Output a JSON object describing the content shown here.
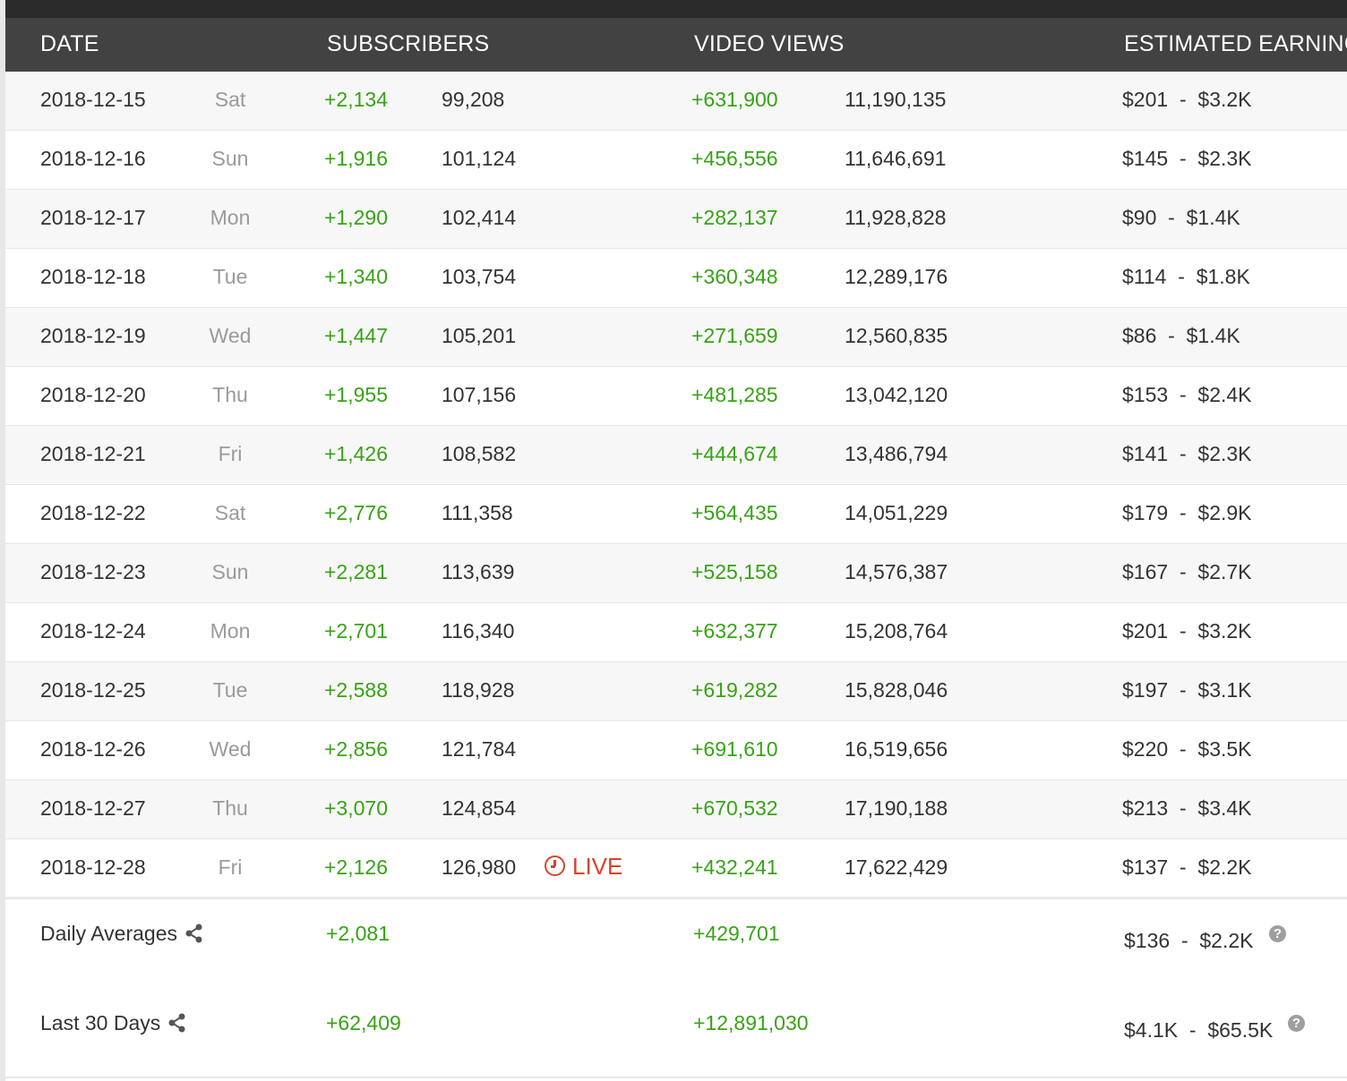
{
  "header": {
    "date": "DATE",
    "subscribers": "SUBSCRIBERS",
    "video_views": "VIDEO VIEWS",
    "estimated_earnings": "ESTIMATED EARNINGS"
  },
  "rows": [
    {
      "date": "2018-12-15",
      "day": "Sat",
      "sub_change": "+2,134",
      "sub_total": "99,208",
      "view_change": "+631,900",
      "view_total": "11,190,135",
      "earn_low": "$201",
      "earn_high": "$3.2K"
    },
    {
      "date": "2018-12-16",
      "day": "Sun",
      "sub_change": "+1,916",
      "sub_total": "101,124",
      "view_change": "+456,556",
      "view_total": "11,646,691",
      "earn_low": "$145",
      "earn_high": "$2.3K"
    },
    {
      "date": "2018-12-17",
      "day": "Mon",
      "sub_change": "+1,290",
      "sub_total": "102,414",
      "view_change": "+282,137",
      "view_total": "11,928,828",
      "earn_low": "$90",
      "earn_high": "$1.4K"
    },
    {
      "date": "2018-12-18",
      "day": "Tue",
      "sub_change": "+1,340",
      "sub_total": "103,754",
      "view_change": "+360,348",
      "view_total": "12,289,176",
      "earn_low": "$114",
      "earn_high": "$1.8K"
    },
    {
      "date": "2018-12-19",
      "day": "Wed",
      "sub_change": "+1,447",
      "sub_total": "105,201",
      "view_change": "+271,659",
      "view_total": "12,560,835",
      "earn_low": "$86",
      "earn_high": "$1.4K"
    },
    {
      "date": "2018-12-20",
      "day": "Thu",
      "sub_change": "+1,955",
      "sub_total": "107,156",
      "view_change": "+481,285",
      "view_total": "13,042,120",
      "earn_low": "$153",
      "earn_high": "$2.4K"
    },
    {
      "date": "2018-12-21",
      "day": "Fri",
      "sub_change": "+1,426",
      "sub_total": "108,582",
      "view_change": "+444,674",
      "view_total": "13,486,794",
      "earn_low": "$141",
      "earn_high": "$2.3K"
    },
    {
      "date": "2018-12-22",
      "day": "Sat",
      "sub_change": "+2,776",
      "sub_total": "111,358",
      "view_change": "+564,435",
      "view_total": "14,051,229",
      "earn_low": "$179",
      "earn_high": "$2.9K"
    },
    {
      "date": "2018-12-23",
      "day": "Sun",
      "sub_change": "+2,281",
      "sub_total": "113,639",
      "view_change": "+525,158",
      "view_total": "14,576,387",
      "earn_low": "$167",
      "earn_high": "$2.7K"
    },
    {
      "date": "2018-12-24",
      "day": "Mon",
      "sub_change": "+2,701",
      "sub_total": "116,340",
      "view_change": "+632,377",
      "view_total": "15,208,764",
      "earn_low": "$201",
      "earn_high": "$3.2K"
    },
    {
      "date": "2018-12-25",
      "day": "Tue",
      "sub_change": "+2,588",
      "sub_total": "118,928",
      "view_change": "+619,282",
      "view_total": "15,828,046",
      "earn_low": "$197",
      "earn_high": "$3.1K"
    },
    {
      "date": "2018-12-26",
      "day": "Wed",
      "sub_change": "+2,856",
      "sub_total": "121,784",
      "view_change": "+691,610",
      "view_total": "16,519,656",
      "earn_low": "$220",
      "earn_high": "$3.5K"
    },
    {
      "date": "2018-12-27",
      "day": "Thu",
      "sub_change": "+3,070",
      "sub_total": "124,854",
      "view_change": "+670,532",
      "view_total": "17,190,188",
      "earn_low": "$213",
      "earn_high": "$3.4K"
    },
    {
      "date": "2018-12-28",
      "day": "Fri",
      "sub_change": "+2,126",
      "sub_total": "126,980",
      "view_change": "+432,241",
      "view_total": "17,622,429",
      "earn_low": "$137",
      "earn_high": "$2.2K",
      "live": "LIVE"
    }
  ],
  "summary": {
    "daily": {
      "label": "Daily Averages",
      "subs": "+2,081",
      "views": "+429,701",
      "earnings": "$136  -  $2.2K"
    },
    "last30": {
      "label": "Last 30 Days",
      "subs": "+62,409",
      "views": "+12,891,030",
      "earnings": "$4.1K  -  $65.5K"
    }
  },
  "icons": {
    "share": "share-icon",
    "help": "help-icon",
    "help_glyph": "?",
    "live": "clock-icon"
  },
  "colors": {
    "header_bg": "#424242",
    "positive": "#37a315",
    "live": "#d9432b"
  }
}
